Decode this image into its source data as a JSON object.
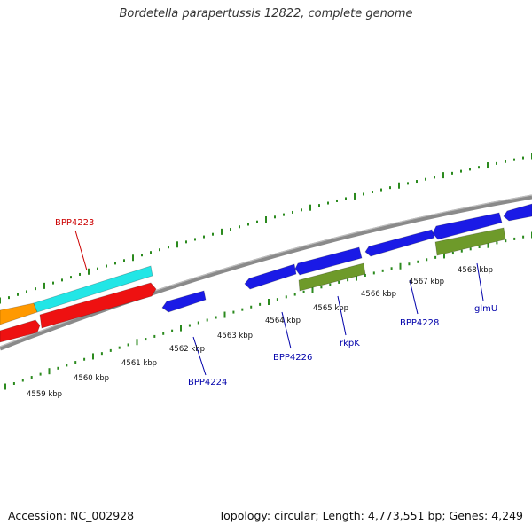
{
  "title": "Bordetella parapertussis 12822, complete genome",
  "footer": {
    "accession": "Accession: NC_002928",
    "summary": "Topology: circular; Length: 4,773,551 bp; Genes: 4,249"
  },
  "colors": {
    "tick": "#2b8a1e",
    "backbone": "#8a8a8a",
    "label_blue": "#0000aa",
    "label_red": "#cc0000",
    "blue_feature": "#1a1ae6",
    "red_feature": "#ee1111",
    "cyan_feature": "#22e6e6",
    "orange_feature": "#ff9900",
    "olive_feature": "#6e9a2a"
  },
  "kbp_labels": [
    "4559 kbp",
    "4560 kbp",
    "4561 kbp",
    "4562 kbp",
    "4563 kbp",
    "4564 kbp",
    "4565 kbp",
    "4566 kbp",
    "4567 kbp",
    "4568 kbp"
  ],
  "gene_labels": [
    {
      "name": "gene-label-bpp4223",
      "text": "BPP4223",
      "color": "red"
    },
    {
      "name": "gene-label-bpp4224",
      "text": "BPP4224",
      "color": "blue"
    },
    {
      "name": "gene-label-bpp4226",
      "text": "BPP4226",
      "color": "blue"
    },
    {
      "name": "gene-label-rkpk",
      "text": "rkpK",
      "color": "blue"
    },
    {
      "name": "gene-label-bpp4228",
      "text": "BPP4228",
      "color": "blue"
    },
    {
      "name": "gene-label-glmu",
      "text": "glmU",
      "color": "blue"
    }
  ]
}
